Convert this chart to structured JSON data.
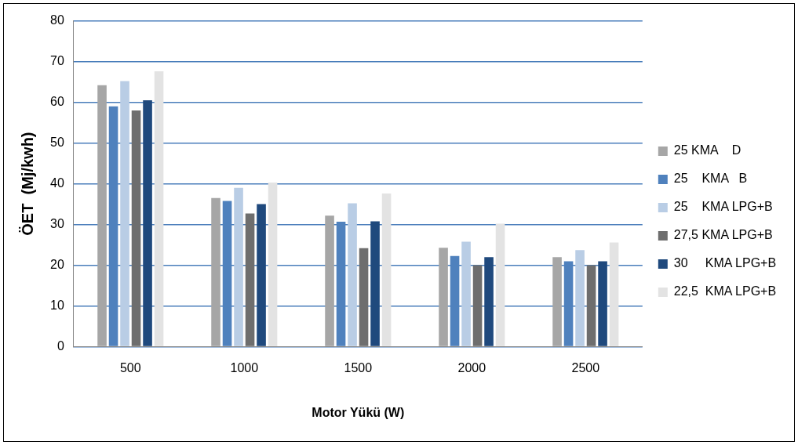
{
  "chart_data": {
    "type": "bar",
    "xlabel": "Motor Yükü (W)",
    "ylabel": "ÖET  (Mj/kwh)",
    "categories": [
      "500",
      "1000",
      "1500",
      "2000",
      "2500"
    ],
    "series": [
      {
        "name": "25 KMA    D",
        "color": "#a6a6a6",
        "values": [
          64.2,
          36.5,
          32.2,
          24.3,
          22
        ]
      },
      {
        "name": "25    KMA   B",
        "color": "#4f81bd",
        "values": [
          59,
          35.8,
          30.7,
          22.3,
          21
        ]
      },
      {
        "name": "25    KMA LPG+B",
        "color": "#b9cde5",
        "values": [
          65.2,
          39,
          35.2,
          25.8,
          23.7
        ]
      },
      {
        "name": "27,5 KMA LPG+B",
        "color": "#6e6e6e",
        "values": [
          58,
          32.7,
          24.2,
          20,
          20
        ]
      },
      {
        "name": "30     KMA LPG+B",
        "color": "#1f497d",
        "values": [
          60.5,
          35,
          30.8,
          22,
          21
        ]
      },
      {
        "name": "22,5  KMA LPG+B",
        "color": "#e3e3e3",
        "values": [
          67.6,
          40.3,
          37.6,
          30.2,
          25.6
        ]
      }
    ],
    "ylim": [
      0,
      80
    ],
    "yticks": [
      0,
      10,
      20,
      30,
      40,
      50,
      60,
      70,
      80
    ],
    "grid": "y",
    "legend": "right"
  }
}
